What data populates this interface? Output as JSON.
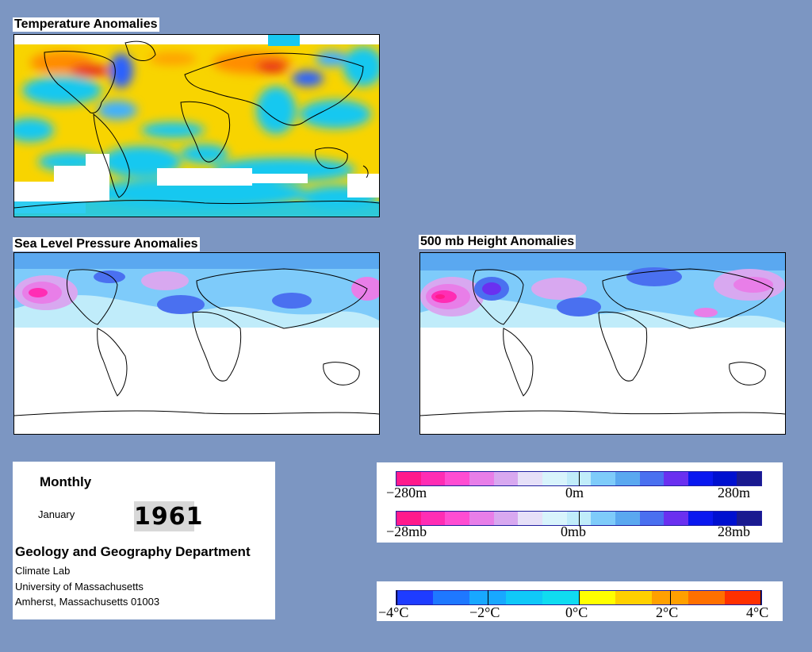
{
  "maps": {
    "temperature": {
      "title": "Temperature Anomalies"
    },
    "slp": {
      "title": "Sea Level Pressure Anomalies"
    },
    "height500": {
      "title": "500 mb Height Anomalies"
    }
  },
  "info": {
    "period": "Monthly",
    "month": "January",
    "year": "1961",
    "department": "Geology and Geography Department",
    "lines": [
      "Climate Lab",
      "University of Massachusetts",
      "Amherst, Massachusetts 01003"
    ]
  },
  "legends": {
    "height": {
      "min": "−280m",
      "mid": "0m",
      "max": "280m"
    },
    "pressure": {
      "min": "−28mb",
      "mid": "0mb",
      "max": "28mb"
    },
    "temp": {
      "labels": [
        "−4°C",
        "−2°C",
        "0°C",
        "2°C",
        "4°C"
      ]
    }
  },
  "colors": {
    "page_background": "#7c96c2",
    "anomaly_scale": [
      "#ff1a8c",
      "#ff2db4",
      "#ff4dd2",
      "#e87ee8",
      "#d8a8f0",
      "#e6e0f8",
      "#d8f4fc",
      "#c0ecfa",
      "#7ecbfa",
      "#5aa8f0",
      "#4a70f0",
      "#6a30f0",
      "#0a18f0",
      "#0010d0",
      "#1a1a90"
    ],
    "temp_scale": [
      "#1e3cff",
      "#1e78ff",
      "#18a8ff",
      "#10c8f8",
      "#10dcf0",
      "#ffff00",
      "#ffd000",
      "#ffa000",
      "#ff7000",
      "#ff3000"
    ]
  }
}
